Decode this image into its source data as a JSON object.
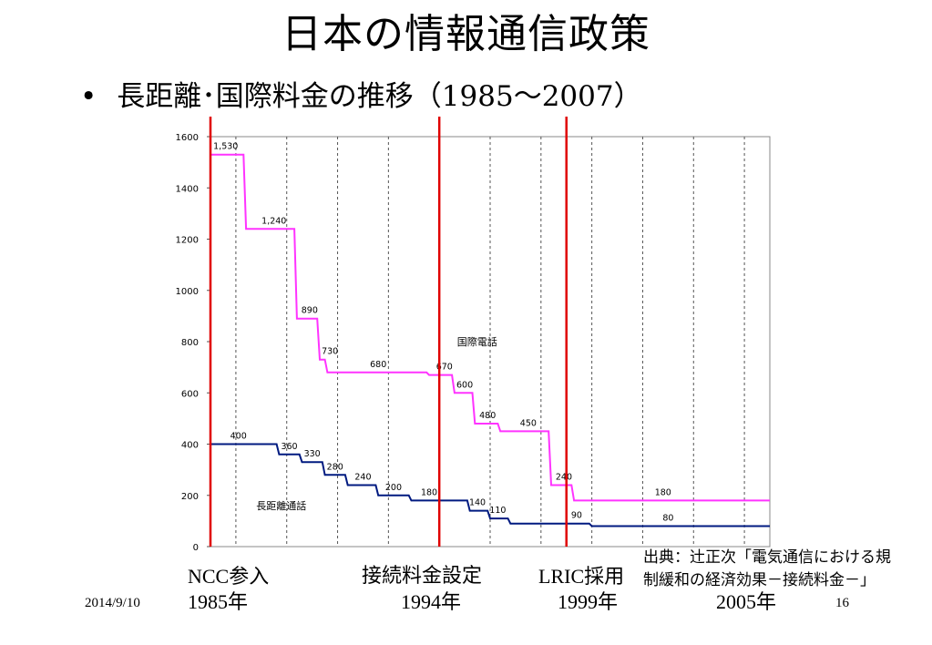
{
  "title": "日本の情報通信政策",
  "bullet": {
    "symbol": "•",
    "text": "長距離･国際料金の推移（",
    "years": "1985〜2007",
    "close": "）"
  },
  "annotations": {
    "ncc": {
      "label": "NCC参入",
      "year": "1985年"
    },
    "interconnect": {
      "label": "接続料金設定",
      "year": "1994年"
    },
    "lric": {
      "label": "LRIC採用",
      "year": "1999年"
    },
    "y2005": {
      "year": "2005年"
    }
  },
  "source": {
    "line1": "出典：辻正次「電気通信における規",
    "line2": "制緩和の経済効果－接続料金－」"
  },
  "footer": {
    "date": "2014/9/10",
    "page": "16"
  },
  "colors": {
    "international": "#ff33ff",
    "long_distance": "#001a80",
    "marker": "#e00000",
    "grid": "#555555"
  },
  "chart_data": {
    "type": "line",
    "ylim": [
      0,
      1600
    ],
    "yticks": [
      0,
      200,
      400,
      600,
      800,
      1000,
      1200,
      1400,
      1600
    ],
    "xlim": [
      1985,
      2007
    ],
    "grid": "vertical dashed lines",
    "series": [
      {
        "name": "国際電話",
        "color": "#ff33ff",
        "points": [
          [
            1985,
            1530
          ],
          [
            1986.3,
            1530
          ],
          [
            1986.4,
            1240
          ],
          [
            1988.3,
            1240
          ],
          [
            1988.4,
            890
          ],
          [
            1989.2,
            890
          ],
          [
            1989.3,
            730
          ],
          [
            1989.5,
            730
          ],
          [
            1989.6,
            680
          ],
          [
            1993.5,
            680
          ],
          [
            1993.6,
            670
          ],
          [
            1994.5,
            670
          ],
          [
            1994.6,
            600
          ],
          [
            1995.3,
            600
          ],
          [
            1995.4,
            480
          ],
          [
            1996.3,
            480
          ],
          [
            1996.4,
            450
          ],
          [
            1998.3,
            450
          ],
          [
            1998.4,
            240
          ],
          [
            1999.2,
            240
          ],
          [
            1999.3,
            180
          ],
          [
            2007,
            180
          ]
        ],
        "labels": [
          {
            "x": 1985.6,
            "y": 1530,
            "text": "1,530"
          },
          {
            "x": 1987.5,
            "y": 1240,
            "text": "1,240"
          },
          {
            "x": 1988.9,
            "y": 890,
            "text": "890"
          },
          {
            "x": 1989.7,
            "y": 730,
            "text": "730"
          },
          {
            "x": 1991.6,
            "y": 680,
            "text": "680"
          },
          {
            "x": 1994.2,
            "y": 670,
            "text": "670"
          },
          {
            "x": 1995.0,
            "y": 600,
            "text": "600"
          },
          {
            "x": 1995.9,
            "y": 480,
            "text": "480"
          },
          {
            "x": 1997.5,
            "y": 450,
            "text": "450"
          },
          {
            "x": 1998.9,
            "y": 240,
            "text": "240"
          },
          {
            "x": 2002.8,
            "y": 180,
            "text": "180"
          }
        ],
        "series_label": {
          "x": 1994.7,
          "y": 800,
          "text": "国際電話"
        }
      },
      {
        "name": "長距離通話",
        "color": "#001a80",
        "points": [
          [
            1985,
            400
          ],
          [
            1987.6,
            400
          ],
          [
            1987.7,
            360
          ],
          [
            1988.5,
            360
          ],
          [
            1988.6,
            330
          ],
          [
            1989.4,
            330
          ],
          [
            1989.5,
            280
          ],
          [
            1990.3,
            280
          ],
          [
            1990.4,
            240
          ],
          [
            1991.5,
            240
          ],
          [
            1991.6,
            200
          ],
          [
            1992.8,
            200
          ],
          [
            1992.9,
            180
          ],
          [
            1995.1,
            180
          ],
          [
            1995.2,
            140
          ],
          [
            1995.9,
            140
          ],
          [
            1996.0,
            110
          ],
          [
            1996.7,
            110
          ],
          [
            1996.8,
            90
          ],
          [
            1999.9,
            90
          ],
          [
            2000.0,
            80
          ],
          [
            2007,
            80
          ]
        ],
        "labels": [
          {
            "x": 1986.1,
            "y": 400,
            "text": "400"
          },
          {
            "x": 1988.1,
            "y": 360,
            "text": "360"
          },
          {
            "x": 1989.0,
            "y": 330,
            "text": "330"
          },
          {
            "x": 1989.9,
            "y": 280,
            "text": "280"
          },
          {
            "x": 1991.0,
            "y": 240,
            "text": "240"
          },
          {
            "x": 1992.2,
            "y": 200,
            "text": "200"
          },
          {
            "x": 1993.6,
            "y": 180,
            "text": "180"
          },
          {
            "x": 1995.5,
            "y": 140,
            "text": "140"
          },
          {
            "x": 1996.3,
            "y": 110,
            "text": "110"
          },
          {
            "x": 1999.4,
            "y": 90,
            "text": "90"
          },
          {
            "x": 2003.0,
            "y": 80,
            "text": "80"
          }
        ],
        "series_label": {
          "x": 1986.8,
          "y": 160,
          "text": "長距離通話"
        }
      }
    ],
    "vertical_markers": [
      1985,
      1994,
      1999
    ]
  }
}
